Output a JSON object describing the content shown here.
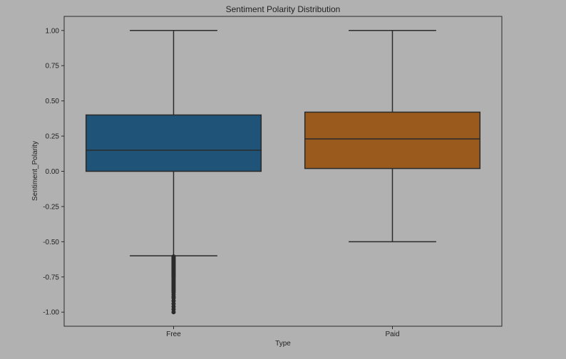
{
  "chart_data": {
    "type": "box",
    "title": "Sentiment Polarity Distribution",
    "xlabel": "Type",
    "ylabel": "Sentiment_Polarity",
    "categories": [
      "Free",
      "Paid"
    ],
    "ylim": [
      -1.1,
      1.1
    ],
    "yticks": [
      1.0,
      0.75,
      0.5,
      0.25,
      0.0,
      -0.25,
      -0.5,
      -0.75,
      -1.0
    ],
    "ytick_labels": [
      "1.00",
      "0.75",
      "0.50",
      "0.25",
      "0.00",
      "-0.25",
      "-0.50",
      "-0.75",
      "-1.00"
    ],
    "boxes": [
      {
        "category": "Free",
        "min": -0.6,
        "q1": 0.0,
        "median": 0.15,
        "q3": 0.4,
        "max": 1.0,
        "color": "#1f5377",
        "outliers": [
          -0.605,
          -0.61,
          -0.615,
          -0.62,
          -0.625,
          -0.63,
          -0.635,
          -0.64,
          -0.645,
          -0.65,
          -0.655,
          -0.66,
          -0.665,
          -0.67,
          -0.675,
          -0.68,
          -0.685,
          -0.69,
          -0.695,
          -0.7,
          -0.705,
          -0.71,
          -0.715,
          -0.72,
          -0.725,
          -0.73,
          -0.735,
          -0.74,
          -0.745,
          -0.75,
          -0.76,
          -0.77,
          -0.78,
          -0.79,
          -0.8,
          -0.81,
          -0.82,
          -0.83,
          -0.84,
          -0.85,
          -0.86,
          -0.875,
          -0.89,
          -0.9,
          -0.92,
          -0.94,
          -0.96,
          -0.98,
          -1.0
        ]
      },
      {
        "category": "Paid",
        "min": -0.5,
        "q1": 0.02,
        "median": 0.23,
        "q3": 0.42,
        "max": 1.0,
        "color": "#9a5a1e",
        "outliers": []
      }
    ],
    "grid": false,
    "background_color": "#b1b1b1",
    "line_color": "#2b2b2b"
  }
}
